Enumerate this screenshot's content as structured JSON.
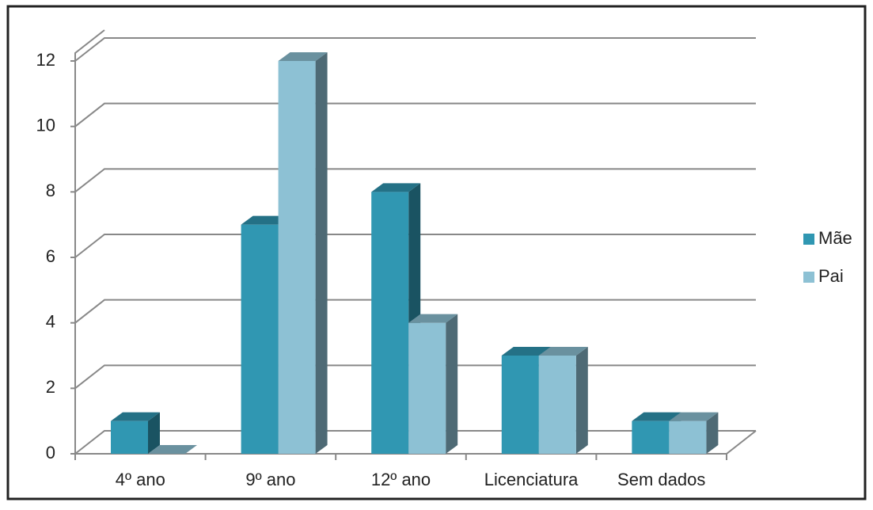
{
  "chart_data": {
    "type": "bar3d",
    "categories": [
      "4º ano",
      "9º ano",
      "12º ano",
      "Licenciatura",
      "Sem dados"
    ],
    "series": [
      {
        "name": "Mãe",
        "color": "#3097b2",
        "values": [
          1,
          7,
          8,
          3,
          1
        ]
      },
      {
        "name": "Pai",
        "color": "#8dc1d4",
        "values": [
          0,
          12,
          4,
          3,
          1
        ]
      }
    ],
    "ylim": [
      0,
      12
    ],
    "yticks": [
      0,
      2,
      4,
      6,
      8,
      10,
      12
    ],
    "grid": true,
    "legend": "right"
  }
}
